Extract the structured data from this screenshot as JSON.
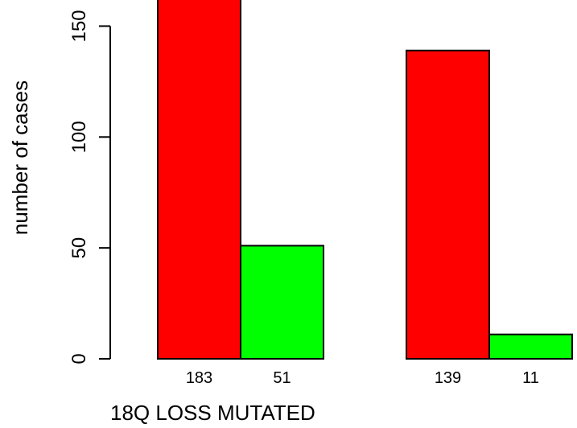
{
  "chart_data": {
    "type": "bar",
    "xlabel": "18Q LOSS MUTATED",
    "ylabel": "number of cases",
    "ylim": [
      0,
      160
    ],
    "yticks": [
      0,
      50,
      100,
      150
    ],
    "grid": false,
    "groups": [
      {
        "bars": [
          {
            "value": 183,
            "label": "183",
            "color": "#ff0000"
          },
          {
            "value": 51,
            "label": "51",
            "color": "#00ff00"
          }
        ]
      },
      {
        "bars": [
          {
            "value": 139,
            "label": "139",
            "color": "#ff0000"
          },
          {
            "value": 11,
            "label": "11",
            "color": "#00ff00"
          }
        ]
      }
    ]
  }
}
